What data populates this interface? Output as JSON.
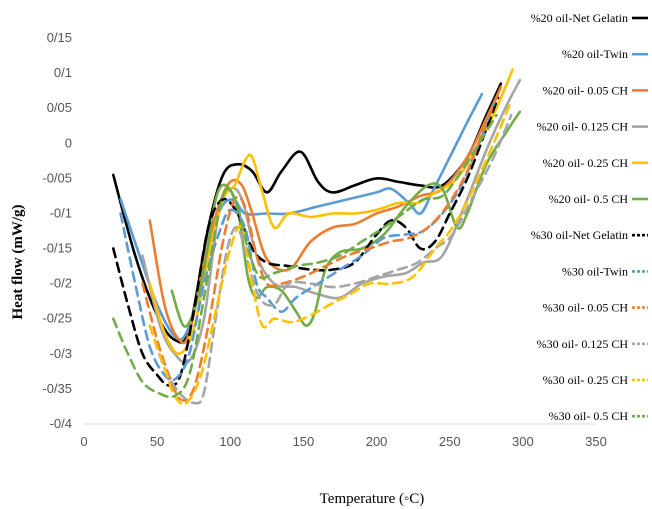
{
  "chart_data": {
    "type": "line",
    "title": "",
    "xlabel": "Temperature (◦C)",
    "ylabel": "Heat flow (mW/g)",
    "xlim": [
      0,
      350
    ],
    "ylim": [
      -0.4,
      0.15
    ],
    "x_ticks": [
      "0",
      "50",
      "100",
      "150",
      "200",
      "250",
      "300",
      "350"
    ],
    "y_ticks": [
      "-0/4",
      "-0/35",
      "-0/3",
      "-0/25",
      "-0/2",
      "-0/15",
      "-0/1",
      "-0/05",
      "0",
      "0/05",
      "0/1",
      "0/15"
    ],
    "grid": false,
    "legend_position": "right",
    "series": [
      {
        "name": "%20 oil-Net Gelatin",
        "color": "#000000",
        "dash": "solid",
        "points": [
          [
            20,
            -0.045
          ],
          [
            35,
            -0.16
          ],
          [
            50,
            -0.245
          ],
          [
            62,
            -0.28
          ],
          [
            72,
            -0.265
          ],
          [
            85,
            -0.12
          ],
          [
            95,
            -0.045
          ],
          [
            105,
            -0.03
          ],
          [
            115,
            -0.04
          ],
          [
            125,
            -0.07
          ],
          [
            135,
            -0.04
          ],
          [
            148,
            -0.012
          ],
          [
            160,
            -0.055
          ],
          [
            170,
            -0.07
          ],
          [
            185,
            -0.06
          ],
          [
            200,
            -0.05
          ],
          [
            215,
            -0.055
          ],
          [
            230,
            -0.06
          ],
          [
            245,
            -0.06
          ],
          [
            262,
            -0.02
          ],
          [
            275,
            0.04
          ],
          [
            285,
            0.085
          ]
        ]
      },
      {
        "name": "%20 oil-Twin",
        "color": "#5b9bd5",
        "dash": "solid",
        "points": [
          [
            25,
            -0.08
          ],
          [
            38,
            -0.16
          ],
          [
            50,
            -0.23
          ],
          [
            62,
            -0.275
          ],
          [
            70,
            -0.27
          ],
          [
            80,
            -0.2
          ],
          [
            92,
            -0.1
          ],
          [
            102,
            -0.08
          ],
          [
            110,
            -0.1
          ],
          [
            125,
            -0.1
          ],
          [
            140,
            -0.1
          ],
          [
            160,
            -0.09
          ],
          [
            180,
            -0.08
          ],
          [
            200,
            -0.07
          ],
          [
            210,
            -0.065
          ],
          [
            222,
            -0.085
          ],
          [
            230,
            -0.1
          ],
          [
            238,
            -0.07
          ],
          [
            250,
            -0.02
          ],
          [
            262,
            0.03
          ],
          [
            272,
            0.07
          ]
        ]
      },
      {
        "name": "%20 oil- 0.05 CH",
        "color": "#ed7d31",
        "dash": "solid",
        "points": [
          [
            45,
            -0.11
          ],
          [
            55,
            -0.23
          ],
          [
            65,
            -0.28
          ],
          [
            72,
            -0.27
          ],
          [
            82,
            -0.17
          ],
          [
            92,
            -0.09
          ],
          [
            100,
            -0.055
          ],
          [
            108,
            -0.06
          ],
          [
            115,
            -0.1
          ],
          [
            125,
            -0.165
          ],
          [
            140,
            -0.18
          ],
          [
            155,
            -0.14
          ],
          [
            170,
            -0.12
          ],
          [
            185,
            -0.115
          ],
          [
            200,
            -0.1
          ],
          [
            215,
            -0.09
          ],
          [
            230,
            -0.075
          ],
          [
            245,
            -0.065
          ],
          [
            262,
            -0.02
          ],
          [
            275,
            0.035
          ],
          [
            285,
            0.08
          ]
        ]
      },
      {
        "name": "%20 oil- 0.125 CH",
        "color": "#a5a5a5",
        "dash": "solid",
        "points": [
          [
            40,
            -0.16
          ],
          [
            52,
            -0.26
          ],
          [
            62,
            -0.3
          ],
          [
            72,
            -0.31
          ],
          [
            82,
            -0.25
          ],
          [
            92,
            -0.1
          ],
          [
            100,
            -0.065
          ],
          [
            108,
            -0.08
          ],
          [
            118,
            -0.16
          ],
          [
            130,
            -0.2
          ],
          [
            145,
            -0.205
          ],
          [
            160,
            -0.215
          ],
          [
            175,
            -0.22
          ],
          [
            190,
            -0.2
          ],
          [
            205,
            -0.19
          ],
          [
            220,
            -0.185
          ],
          [
            232,
            -0.17
          ],
          [
            245,
            -0.16
          ],
          [
            260,
            -0.09
          ],
          [
            275,
            -0.01
          ],
          [
            288,
            0.05
          ],
          [
            298,
            0.09
          ]
        ]
      },
      {
        "name": "%20 oil- 0.25 CH",
        "color": "#ffc000",
        "dash": "solid",
        "points": [
          [
            45,
            -0.2
          ],
          [
            55,
            -0.27
          ],
          [
            65,
            -0.3
          ],
          [
            75,
            -0.265
          ],
          [
            85,
            -0.16
          ],
          [
            95,
            -0.08
          ],
          [
            103,
            -0.06
          ],
          [
            110,
            -0.025
          ],
          [
            115,
            -0.02
          ],
          [
            122,
            -0.07
          ],
          [
            130,
            -0.12
          ],
          [
            140,
            -0.1
          ],
          [
            155,
            -0.105
          ],
          [
            170,
            -0.1
          ],
          [
            185,
            -0.1
          ],
          [
            200,
            -0.095
          ],
          [
            215,
            -0.085
          ],
          [
            228,
            -0.085
          ],
          [
            240,
            -0.07
          ],
          [
            255,
            -0.05
          ],
          [
            270,
            0
          ],
          [
            282,
            0.05
          ],
          [
            293,
            0.105
          ]
        ]
      },
      {
        "name": "%20 oil- 0.5 CH",
        "color": "#70ad47",
        "dash": "solid",
        "points": [
          [
            60,
            -0.21
          ],
          [
            68,
            -0.26
          ],
          [
            75,
            -0.24
          ],
          [
            82,
            -0.18
          ],
          [
            90,
            -0.08
          ],
          [
            97,
            -0.06
          ],
          [
            105,
            -0.095
          ],
          [
            112,
            -0.19
          ],
          [
            118,
            -0.22
          ],
          [
            125,
            -0.205
          ],
          [
            135,
            -0.21
          ],
          [
            145,
            -0.24
          ],
          [
            152,
            -0.26
          ],
          [
            158,
            -0.24
          ],
          [
            165,
            -0.18
          ],
          [
            175,
            -0.155
          ],
          [
            190,
            -0.15
          ],
          [
            205,
            -0.13
          ],
          [
            220,
            -0.09
          ],
          [
            235,
            -0.06
          ],
          [
            245,
            -0.065
          ],
          [
            255,
            -0.12
          ],
          [
            262,
            -0.1
          ],
          [
            275,
            -0.03
          ],
          [
            290,
            0.02
          ],
          [
            298,
            0.045
          ]
        ]
      },
      {
        "name": "%30 oil-Net Gelatin",
        "color": "#000000",
        "dash": "dashed",
        "points": [
          [
            20,
            -0.15
          ],
          [
            30,
            -0.23
          ],
          [
            40,
            -0.3
          ],
          [
            50,
            -0.33
          ],
          [
            58,
            -0.345
          ],
          [
            66,
            -0.33
          ],
          [
            75,
            -0.24
          ],
          [
            85,
            -0.12
          ],
          [
            95,
            -0.08
          ],
          [
            105,
            -0.1
          ],
          [
            115,
            -0.15
          ],
          [
            125,
            -0.17
          ],
          [
            140,
            -0.175
          ],
          [
            155,
            -0.18
          ],
          [
            170,
            -0.18
          ],
          [
            185,
            -0.17
          ],
          [
            200,
            -0.13
          ],
          [
            210,
            -0.11
          ],
          [
            220,
            -0.12
          ],
          [
            230,
            -0.15
          ],
          [
            240,
            -0.14
          ],
          [
            250,
            -0.1
          ],
          [
            262,
            -0.05
          ],
          [
            275,
            0.02
          ],
          [
            283,
            0.065
          ]
        ]
      },
      {
        "name": "%30 oil-Twin",
        "color": "#5b9bd5",
        "dash": "dashed",
        "points": [
          [
            25,
            -0.1
          ],
          [
            35,
            -0.2
          ],
          [
            45,
            -0.29
          ],
          [
            55,
            -0.33
          ],
          [
            63,
            -0.335
          ],
          [
            72,
            -0.3
          ],
          [
            82,
            -0.2
          ],
          [
            92,
            -0.13
          ],
          [
            100,
            -0.095
          ],
          [
            110,
            -0.12
          ],
          [
            118,
            -0.2
          ],
          [
            125,
            -0.22
          ],
          [
            135,
            -0.24
          ],
          [
            145,
            -0.22
          ],
          [
            160,
            -0.2
          ],
          [
            175,
            -0.18
          ],
          [
            190,
            -0.16
          ],
          [
            205,
            -0.135
          ],
          [
            220,
            -0.13
          ],
          [
            232,
            -0.125
          ],
          [
            245,
            -0.1
          ],
          [
            258,
            -0.06
          ],
          [
            270,
            0
          ],
          [
            280,
            0.055
          ]
        ]
      },
      {
        "name": "%30 oil- 0.05 CH",
        "color": "#ed7d31",
        "dash": "dashed",
        "points": [
          [
            40,
            -0.2
          ],
          [
            50,
            -0.28
          ],
          [
            58,
            -0.33
          ],
          [
            66,
            -0.365
          ],
          [
            75,
            -0.35
          ],
          [
            85,
            -0.26
          ],
          [
            95,
            -0.14
          ],
          [
            103,
            -0.08
          ],
          [
            110,
            -0.09
          ],
          [
            118,
            -0.16
          ],
          [
            125,
            -0.2
          ],
          [
            135,
            -0.2
          ],
          [
            150,
            -0.19
          ],
          [
            165,
            -0.175
          ],
          [
            180,
            -0.16
          ],
          [
            195,
            -0.15
          ],
          [
            210,
            -0.14
          ],
          [
            222,
            -0.135
          ],
          [
            235,
            -0.12
          ],
          [
            248,
            -0.09
          ],
          [
            262,
            -0.04
          ],
          [
            275,
            0.03
          ],
          [
            285,
            0.08
          ]
        ]
      },
      {
        "name": "%30 oil- 0.125 CH",
        "color": "#a5a5a5",
        "dash": "dashed",
        "points": [
          [
            45,
            -0.26
          ],
          [
            55,
            -0.32
          ],
          [
            65,
            -0.355
          ],
          [
            75,
            -0.37
          ],
          [
            82,
            -0.355
          ],
          [
            90,
            -0.25
          ],
          [
            98,
            -0.15
          ],
          [
            105,
            -0.12
          ],
          [
            112,
            -0.17
          ],
          [
            120,
            -0.22
          ],
          [
            130,
            -0.23
          ],
          [
            140,
            -0.2
          ],
          [
            155,
            -0.2
          ],
          [
            170,
            -0.205
          ],
          [
            185,
            -0.2
          ],
          [
            200,
            -0.19
          ],
          [
            215,
            -0.18
          ],
          [
            228,
            -0.17
          ],
          [
            240,
            -0.15
          ],
          [
            252,
            -0.13
          ],
          [
            265,
            -0.08
          ],
          [
            280,
            -0.02
          ],
          [
            292,
            0.04
          ]
        ]
      },
      {
        "name": "%30 oil- 0.25 CH",
        "color": "#ffc000",
        "dash": "dashed",
        "points": [
          [
            45,
            -0.26
          ],
          [
            55,
            -0.32
          ],
          [
            62,
            -0.36
          ],
          [
            70,
            -0.37
          ],
          [
            80,
            -0.33
          ],
          [
            90,
            -0.24
          ],
          [
            100,
            -0.15
          ],
          [
            108,
            -0.12
          ],
          [
            115,
            -0.2
          ],
          [
            122,
            -0.26
          ],
          [
            130,
            -0.25
          ],
          [
            142,
            -0.255
          ],
          [
            155,
            -0.245
          ],
          [
            168,
            -0.23
          ],
          [
            182,
            -0.215
          ],
          [
            195,
            -0.2
          ],
          [
            210,
            -0.2
          ],
          [
            225,
            -0.19
          ],
          [
            240,
            -0.15
          ],
          [
            252,
            -0.12
          ],
          [
            265,
            -0.07
          ],
          [
            280,
            0
          ],
          [
            292,
            0.06
          ]
        ]
      },
      {
        "name": "%30 oil- 0.5 CH",
        "color": "#70ad47",
        "dash": "dashed",
        "points": [
          [
            20,
            -0.25
          ],
          [
            30,
            -0.3
          ],
          [
            40,
            -0.34
          ],
          [
            50,
            -0.355
          ],
          [
            62,
            -0.36
          ],
          [
            72,
            -0.33
          ],
          [
            82,
            -0.22
          ],
          [
            92,
            -0.1
          ],
          [
            98,
            -0.065
          ],
          [
            105,
            -0.09
          ],
          [
            112,
            -0.15
          ],
          [
            120,
            -0.19
          ],
          [
            130,
            -0.185
          ],
          [
            145,
            -0.175
          ],
          [
            160,
            -0.17
          ],
          [
            175,
            -0.16
          ],
          [
            190,
            -0.14
          ],
          [
            205,
            -0.12
          ],
          [
            218,
            -0.1
          ],
          [
            232,
            -0.08
          ],
          [
            245,
            -0.075
          ],
          [
            258,
            -0.04
          ],
          [
            270,
            0
          ],
          [
            282,
            0.04
          ]
        ]
      }
    ]
  }
}
